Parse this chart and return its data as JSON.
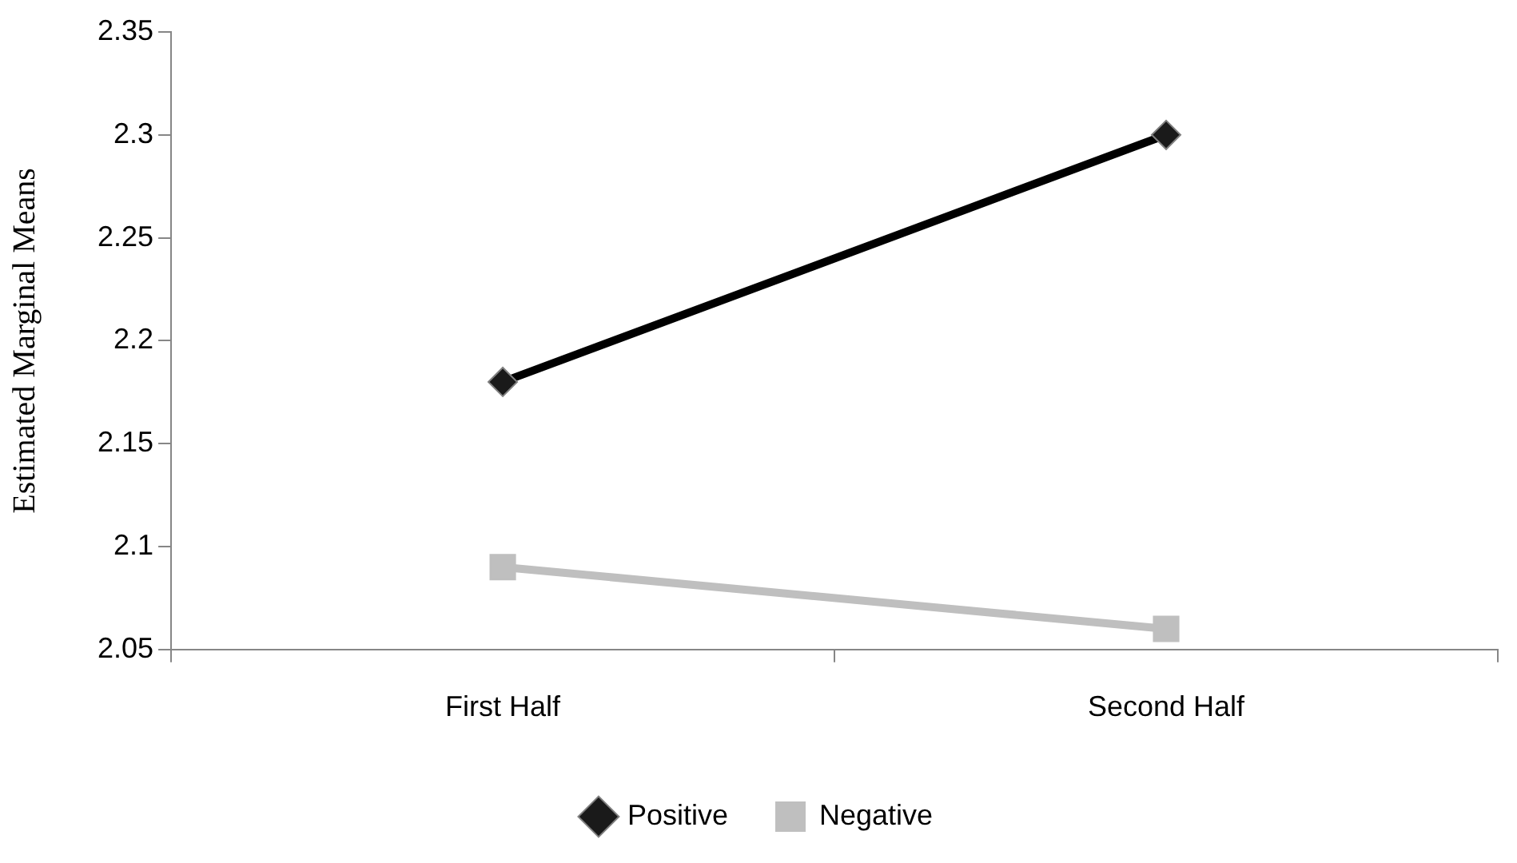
{
  "chart_data": {
    "type": "line",
    "ylabel": "Estimated Marginal Means",
    "categories": [
      "First Half",
      "Second Half"
    ],
    "series": [
      {
        "name": "Positive",
        "color": "#000000",
        "values": [
          2.18,
          2.3
        ],
        "marker": "diamond"
      },
      {
        "name": "Negative",
        "color": "#bfbfbf",
        "values": [
          2.09,
          2.06
        ],
        "marker": "square"
      }
    ],
    "ylim": [
      2.05,
      2.35
    ],
    "yticks": [
      2.05,
      2.1,
      2.15,
      2.2,
      2.25,
      2.3,
      2.35
    ],
    "grid": false,
    "legend": "bottom",
    "line_style": "solid"
  }
}
